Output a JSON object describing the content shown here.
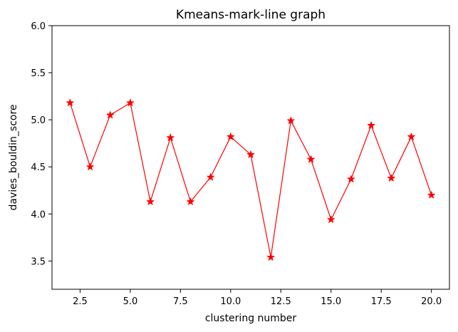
{
  "chart_data": {
    "type": "line",
    "title": "Kmeans-mark-line graph",
    "xlabel": "clustering number",
    "ylabel": "davies_bouldin_score",
    "xlim": [
      1.1,
      20.9
    ],
    "ylim": [
      3.2,
      6.0
    ],
    "xticks": [
      "2.5",
      "5.0",
      "7.5",
      "10.0",
      "12.5",
      "15.0",
      "17.5",
      "20.0"
    ],
    "xtick_values": [
      2.5,
      5.0,
      7.5,
      10.0,
      12.5,
      15.0,
      17.5,
      20.0
    ],
    "yticks": [
      "3.5",
      "4.0",
      "4.5",
      "5.0",
      "5.5",
      "6.0"
    ],
    "ytick_values": [
      3.5,
      4.0,
      4.5,
      5.0,
      5.5,
      6.0
    ],
    "grid": false,
    "marker": "star",
    "line_color": "#ff0000",
    "series": [
      {
        "x": [
          2,
          3,
          4,
          5,
          6,
          7,
          8,
          9,
          10,
          11,
          12,
          13,
          14,
          15,
          16,
          17,
          18,
          19,
          20
        ],
        "values": [
          5.18,
          4.5,
          5.05,
          5.18,
          4.13,
          4.81,
          4.13,
          4.39,
          4.82,
          4.63,
          3.54,
          4.99,
          4.58,
          3.94,
          4.37,
          4.94,
          4.38,
          4.82,
          4.2
        ]
      }
    ]
  }
}
